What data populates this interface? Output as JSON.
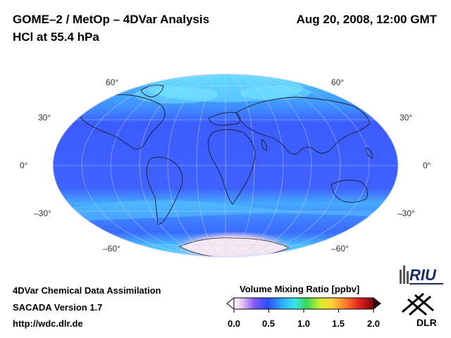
{
  "header": {
    "title": "GOME–2 / MetOp – 4DVar Analysis",
    "subtitle": "HCl at 55.4 hPa",
    "datetime": "Aug 20, 2008, 12:00 GMT"
  },
  "map": {
    "projection": "mollweide",
    "latitude_labels": [
      "60°",
      "30°",
      "0°",
      "–30°",
      "–60°"
    ],
    "colors": {
      "low": "#3c5cff",
      "mid": "#3f8cff",
      "high": "#5fd8ff",
      "polar": "#f4e6f0"
    }
  },
  "footer": {
    "line1": "4DVar Chemical Data Assimilation",
    "line2": "SACADA Version 1.7",
    "line3": "http://wdc.dlr.de"
  },
  "colorbar": {
    "title": "Volume Mixing Ratio [ppbv]",
    "ticks": [
      "0.0",
      "0.5",
      "1.0",
      "1.5",
      "2.0"
    ],
    "range": [
      0.0,
      2.0
    ]
  },
  "logos": {
    "riu": "RIU",
    "dlr": "DLR"
  }
}
